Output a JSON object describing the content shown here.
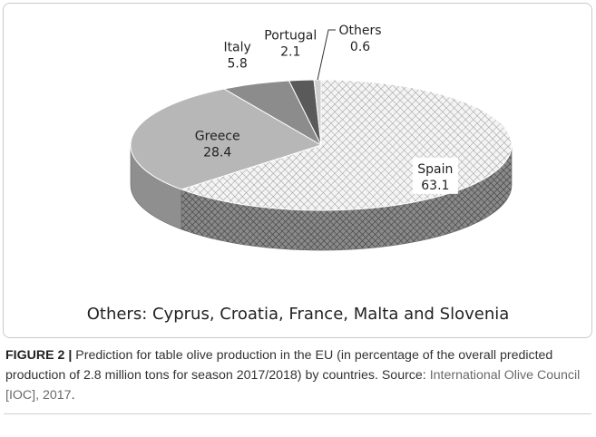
{
  "chart_data": {
    "type": "pie",
    "categories": [
      "Spain",
      "Greece",
      "Italy",
      "Portugal",
      "Others"
    ],
    "values": [
      63.1,
      28.4,
      5.8,
      2.1,
      0.6
    ],
    "title": "",
    "colors": [
      "#e8e8e8",
      "#b7b7b7",
      "#8c8c8c",
      "#5a5a5a",
      "#cfcfcf"
    ],
    "note": "Others: Cyprus, Croatia, France, Malta and Slovenia"
  },
  "caption": {
    "label": "FIGURE 2 |",
    "text": " Prediction for table olive production in the EU (in percentage of the overall predicted production of 2.8 million tons for season 2017/2018) by countries. Source: ",
    "source": "International Olive Council [IOC], 2017",
    "end": "."
  }
}
